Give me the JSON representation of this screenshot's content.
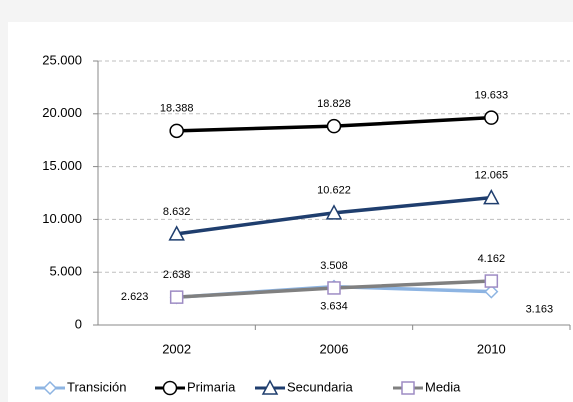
{
  "chart_data": {
    "type": "line",
    "categories": [
      "2002",
      "2006",
      "2010"
    ],
    "ylim": [
      0,
      25000
    ],
    "yticks": [
      {
        "value": 0,
        "label": "0"
      },
      {
        "value": 5000,
        "label": "5.000"
      },
      {
        "value": 10000,
        "label": "10.000"
      },
      {
        "value": 15000,
        "label": "15.000"
      },
      {
        "value": 20000,
        "label": "20.000"
      },
      {
        "value": 25000,
        "label": "25.000"
      }
    ],
    "grid": true,
    "legend": "bottom",
    "series": [
      {
        "name": "Transición",
        "color": "#8db4e2",
        "marker": "diamond",
        "values": [
          2623,
          3634,
          3163
        ],
        "value_labels": [
          "2.623",
          "3.634",
          "3.163"
        ]
      },
      {
        "name": "Primaria",
        "color": "#000000",
        "marker": "circle",
        "values": [
          18388,
          18828,
          19633
        ],
        "value_labels": [
          "18.388",
          "18.828",
          "19.633"
        ]
      },
      {
        "name": "Secundaria",
        "color": "#1f3e6e",
        "marker": "triangle",
        "values": [
          8632,
          10622,
          12065
        ],
        "value_labels": [
          "8.632",
          "10.622",
          "12.065"
        ]
      },
      {
        "name": "Media",
        "color": "#808080",
        "marker": "square",
        "values": [
          2638,
          3508,
          4162
        ],
        "value_labels": [
          "2.638",
          "3.508",
          "4.162"
        ]
      }
    ]
  }
}
